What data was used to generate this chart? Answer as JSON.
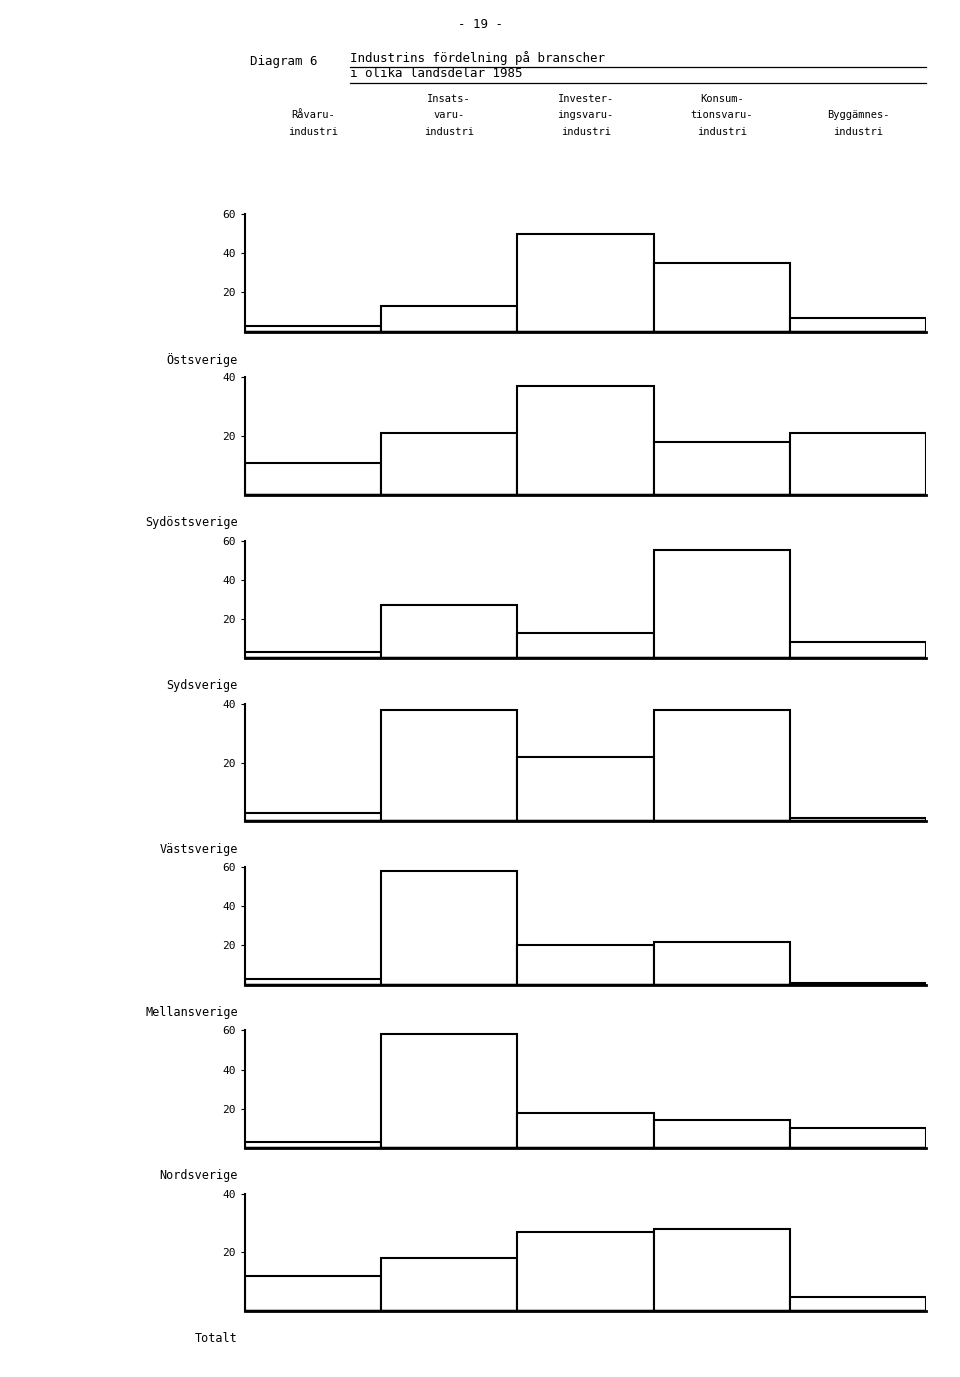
{
  "page_number": "- 19 -",
  "diagram_label": "Diagram 6",
  "title_line1": "Industrins fördelning på branscher",
  "title_line2": "i olika landsdelar 1985",
  "col_headers": [
    [
      "Råvaru-",
      "industri"
    ],
    [
      "Insats-",
      "varu-",
      "industri"
    ],
    [
      "Invester-",
      "ingsvaru-",
      "industri"
    ],
    [
      "Konsum-",
      "tionsvaru-",
      "industri"
    ],
    [
      "Byggämnes-",
      "industri"
    ]
  ],
  "regions": [
    {
      "name": "Östsverige",
      "values": [
        3,
        13,
        50,
        35,
        7
      ],
      "ymax": 60,
      "yticks": [
        20,
        40,
        60
      ]
    },
    {
      "name": "Sydöstsverige",
      "values": [
        11,
        21,
        37,
        18,
        21
      ],
      "ymax": 40,
      "yticks": [
        20,
        40
      ]
    },
    {
      "name": "Sydsverige",
      "values": [
        3,
        27,
        13,
        55,
        8
      ],
      "ymax": 60,
      "yticks": [
        20,
        40,
        60
      ]
    },
    {
      "name": "Västsverige",
      "values": [
        3,
        38,
        22,
        38,
        1
      ],
      "ymax": 40,
      "yticks": [
        20,
        40
      ]
    },
    {
      "name": "Mellansverige",
      "values": [
        3,
        58,
        20,
        22,
        1
      ],
      "ymax": 60,
      "yticks": [
        20,
        40,
        60
      ]
    },
    {
      "name": "Nordsverige",
      "values": [
        3,
        58,
        18,
        14,
        10
      ],
      "ymax": 60,
      "yticks": [
        20,
        40,
        60
      ]
    },
    {
      "name": "Totalt",
      "values": [
        12,
        18,
        27,
        28,
        5
      ],
      "ymax": 40,
      "yticks": [
        20,
        40
      ]
    }
  ],
  "bar_color": "white",
  "edge_color": "black",
  "background_color": "white",
  "linewidth": 1.5,
  "fig_width": 9.6,
  "fig_height": 13.77,
  "dpi": 100
}
